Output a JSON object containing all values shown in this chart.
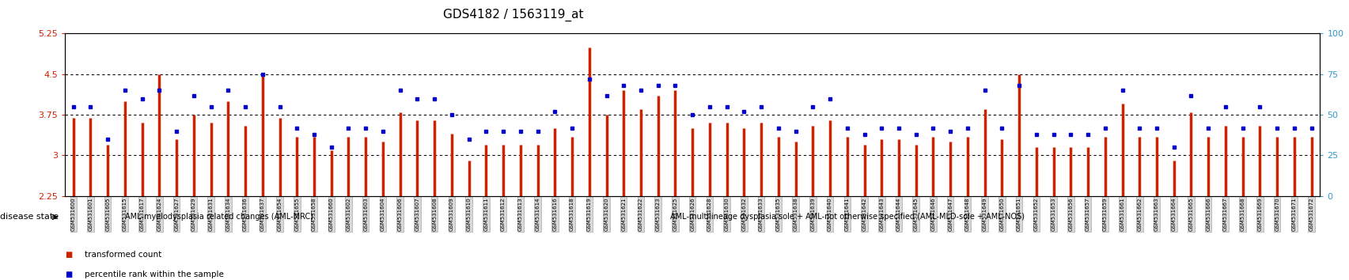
{
  "title": "GDS4182 / 1563119_at",
  "ylim_left": [
    2.25,
    5.25
  ],
  "ylim_right": [
    0,
    100
  ],
  "yticks_left": [
    2.25,
    3.0,
    3.75,
    4.5,
    5.25
  ],
  "yticks_right": [
    0,
    25,
    50,
    75,
    100
  ],
  "ytick_labels_left": [
    "2.25",
    "3",
    "3.75",
    "4.5",
    "5.25"
  ],
  "ytick_labels_right": [
    "0",
    "25",
    "50",
    "75",
    "100"
  ],
  "gridlines": [
    3.0,
    3.75,
    4.5
  ],
  "bar_color": "#cc2200",
  "marker_color": "#0000cc",
  "bg_color": "#ffffff",
  "legend1_label": "transformed count",
  "legend2_label": "percentile rank within the sample",
  "group1_label": "AML-myelodysplasia related changes (AML-MRC)",
  "group2_label": "AML-multilineage dysplasia sole + AML-not otherwise specified (AML-MLD-sole + AML-NOS)",
  "disease_state_label": "disease state",
  "group1_color": "#ccffcc",
  "group2_color": "#55ee55",
  "baseline": 2.25,
  "samples": [
    "GSM531600",
    "GSM531601",
    "GSM531605",
    "GSM531615",
    "GSM531617",
    "GSM531624",
    "GSM531627",
    "GSM531629",
    "GSM531631",
    "GSM531634",
    "GSM531636",
    "GSM531637",
    "GSM531654",
    "GSM531655",
    "GSM531658",
    "GSM531660",
    "GSM531602",
    "GSM531603",
    "GSM531604",
    "GSM531606",
    "GSM531607",
    "GSM531608",
    "GSM531609",
    "GSM531610",
    "GSM531611",
    "GSM531612",
    "GSM531613",
    "GSM531614",
    "GSM531616",
    "GSM531618",
    "GSM531619",
    "GSM531620",
    "GSM531621",
    "GSM531622",
    "GSM531623",
    "GSM531625",
    "GSM531626",
    "GSM531628",
    "GSM531630",
    "GSM531632",
    "GSM531633",
    "GSM531635",
    "GSM531638",
    "GSM531639",
    "GSM531640",
    "GSM531641",
    "GSM531642",
    "GSM531643",
    "GSM531644",
    "GSM531645",
    "GSM531646",
    "GSM531647",
    "GSM531648",
    "GSM531649",
    "GSM531650",
    "GSM531651",
    "GSM531652",
    "GSM531653",
    "GSM531656",
    "GSM531657",
    "GSM531659",
    "GSM531661",
    "GSM531662",
    "GSM531663",
    "GSM531664",
    "GSM531665",
    "GSM531666",
    "GSM531667",
    "GSM531668",
    "GSM531669",
    "GSM531670",
    "GSM531671",
    "GSM531672"
  ],
  "values": [
    3.7,
    3.7,
    3.2,
    4.0,
    3.6,
    4.5,
    3.3,
    3.75,
    3.6,
    4.0,
    3.55,
    4.5,
    3.7,
    3.35,
    3.35,
    3.1,
    3.35,
    3.35,
    3.25,
    3.8,
    3.65,
    3.65,
    3.4,
    2.9,
    3.2,
    3.2,
    3.2,
    3.2,
    3.5,
    3.35,
    5.0,
    3.75,
    4.2,
    3.85,
    4.1,
    4.2,
    3.5,
    3.6,
    3.6,
    3.5,
    3.6,
    3.35,
    3.25,
    3.55,
    3.65,
    3.35,
    3.2,
    3.3,
    3.3,
    3.2,
    3.35,
    3.25,
    3.35,
    3.85,
    3.3,
    4.5,
    3.15,
    3.15,
    3.15,
    3.15,
    3.35,
    3.95,
    3.35,
    3.35,
    2.9,
    3.8,
    3.35,
    3.55,
    3.35,
    3.55,
    3.35,
    3.35,
    3.35
  ],
  "percentiles": [
    55,
    55,
    35,
    65,
    60,
    65,
    40,
    62,
    55,
    65,
    55,
    75,
    55,
    42,
    38,
    30,
    42,
    42,
    40,
    65,
    60,
    60,
    50,
    35,
    40,
    40,
    40,
    40,
    52,
    42,
    72,
    62,
    68,
    65,
    68,
    68,
    50,
    55,
    55,
    52,
    55,
    42,
    40,
    55,
    60,
    42,
    38,
    42,
    42,
    38,
    42,
    40,
    42,
    65,
    42,
    68,
    38,
    38,
    38,
    38,
    42,
    65,
    42,
    42,
    30,
    62,
    42,
    55,
    42,
    55,
    42,
    42,
    42
  ],
  "group1_count": 18,
  "group2_count": 55
}
